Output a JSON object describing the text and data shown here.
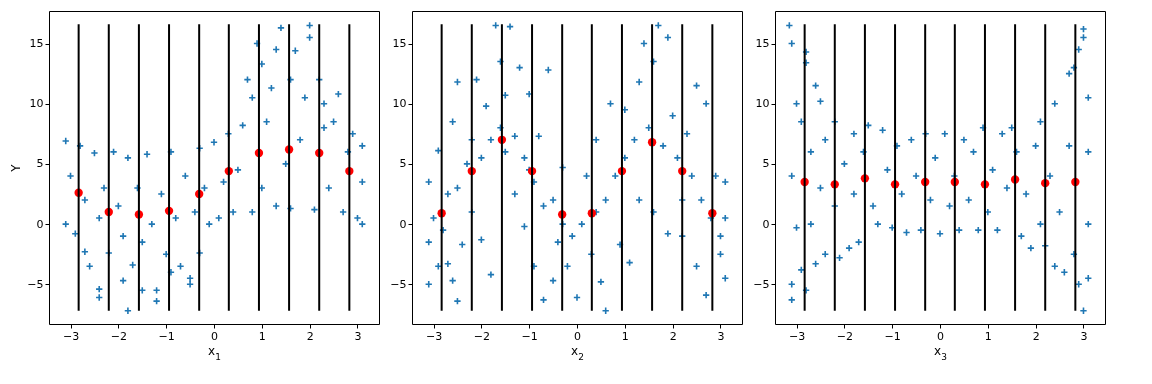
{
  "chart_data": [
    {
      "type": "scatter",
      "xlabel": "x$_{1}$",
      "ylabel": "Y",
      "xlim": [
        -3.45,
        3.45
      ],
      "ylim": [
        -8.3,
        17.7
      ],
      "xticks": [
        -3,
        -2,
        -1,
        0,
        1,
        2,
        3
      ],
      "yticks": [
        -5,
        0,
        5,
        10,
        15
      ],
      "grid": false,
      "series": [
        {
          "type": "scatter",
          "color": "#1f77b4",
          "marker": "cross",
          "x": [
            -3.1,
            -3.1,
            -3.0,
            -2.9,
            -2.8,
            -2.7,
            -2.7,
            -2.6,
            -2.5,
            -2.4,
            -2.4,
            -2.4,
            -2.3,
            -2.2,
            -2.1,
            -2.0,
            -1.9,
            -1.9,
            -1.8,
            -1.8,
            -1.7,
            -1.6,
            -1.5,
            -1.5,
            -1.4,
            -1.3,
            -1.2,
            -1.2,
            -1.1,
            -1.0,
            -0.9,
            -0.9,
            -0.8,
            -0.7,
            -0.6,
            -0.5,
            -0.5,
            -0.4,
            -0.3,
            -0.3,
            -0.2,
            -0.1,
            0,
            0.1,
            0.2,
            0.3,
            0.4,
            0.5,
            0.6,
            0.7,
            0.8,
            0.8,
            0.9,
            1.0,
            1.0,
            1.1,
            1.2,
            1.3,
            1.3,
            1.4,
            1.5,
            1.6,
            1.6,
            1.7,
            1.8,
            1.9,
            2.0,
            2.0,
            2.1,
            2.2,
            2.3,
            2.3,
            2.4,
            2.5,
            2.6,
            2.7,
            2.8,
            2.9,
            3.0,
            3.1,
            3.1,
            3.1
          ],
          "values": [
            6.9,
            0,
            4,
            -0.8,
            6.5,
            2,
            -2.3,
            -3.5,
            5.9,
            0.5,
            -5.4,
            -6.1,
            3,
            -2.4,
            6,
            1.5,
            -4.7,
            -1,
            5.5,
            -7.2,
            -3.4,
            3,
            -1.5,
            -5.5,
            5.8,
            0,
            -6.4,
            -5.5,
            2.5,
            -2.5,
            6,
            -4,
            0.5,
            -3.5,
            4,
            -4.5,
            -5,
            1,
            6.3,
            -2.4,
            3,
            0,
            6.8,
            0.5,
            3.5,
            7.5,
            1,
            4.5,
            8.2,
            12,
            1,
            10.5,
            15,
            3,
            13.3,
            8.5,
            11.3,
            1.5,
            14.5,
            16.3,
            5,
            12,
            1.3,
            14.4,
            7,
            10.5,
            16.5,
            15.5,
            1.2,
            12,
            8,
            10,
            3,
            8.5,
            10.8,
            1,
            6,
            7.5,
            0.5,
            0,
            6.5,
            3.5
          ]
        },
        {
          "type": "scatter",
          "color": "#ff0000",
          "marker": "circle",
          "x": [
            -2.83,
            -2.2,
            -1.57,
            -0.94,
            -0.31,
            0.31,
            0.94,
            1.57,
            2.2,
            2.83
          ],
          "values": [
            2.6,
            1.0,
            0.8,
            1.1,
            2.5,
            4.4,
            5.9,
            6.2,
            5.9,
            4.4
          ]
        },
        {
          "type": "line",
          "color": "#000000",
          "x": [
            -2.83,
            -2.83
          ],
          "values": [
            -7.2,
            16.6
          ]
        },
        {
          "type": "line",
          "color": "#000000",
          "x": [
            -2.2,
            -2.2
          ],
          "values": [
            -7.2,
            16.6
          ]
        },
        {
          "type": "line",
          "color": "#000000",
          "x": [
            -1.57,
            -1.57
          ],
          "values": [
            -7.2,
            16.6
          ]
        },
        {
          "type": "line",
          "color": "#000000",
          "x": [
            -0.94,
            -0.94
          ],
          "values": [
            -7.2,
            16.6
          ]
        },
        {
          "type": "line",
          "color": "#000000",
          "x": [
            -0.31,
            -0.31
          ],
          "values": [
            -7.2,
            16.6
          ]
        },
        {
          "type": "line",
          "color": "#000000",
          "x": [
            0.31,
            0.31
          ],
          "values": [
            -7.2,
            16.6
          ]
        },
        {
          "type": "line",
          "color": "#000000",
          "x": [
            0.94,
            0.94
          ],
          "values": [
            -7.2,
            16.6
          ]
        },
        {
          "type": "line",
          "color": "#000000",
          "x": [
            1.57,
            1.57
          ],
          "values": [
            -7.2,
            16.6
          ]
        },
        {
          "type": "line",
          "color": "#000000",
          "x": [
            2.2,
            2.2
          ],
          "values": [
            -7.2,
            16.6
          ]
        },
        {
          "type": "line",
          "color": "#000000",
          "x": [
            2.83,
            2.83
          ],
          "values": [
            -7.2,
            16.6
          ]
        }
      ]
    },
    {
      "type": "scatter",
      "xlabel": "x$_{2}$",
      "xlim": [
        -3.45,
        3.45
      ],
      "ylim": [
        -8.3,
        17.7
      ],
      "xticks": [
        -3,
        -2,
        -1,
        0,
        1,
        2,
        3
      ],
      "yticks": [
        -5,
        0,
        5,
        10,
        15
      ],
      "grid": false,
      "series": [
        {
          "type": "scatter",
          "color": "#1f77b4",
          "marker": "cross",
          "x": [
            -3.1,
            -3.1,
            -3.1,
            -3.0,
            -2.9,
            -2.9,
            -2.8,
            -2.7,
            -2.7,
            -2.6,
            -2.6,
            -2.5,
            -2.5,
            -2.5,
            -2.4,
            -2.3,
            -2.2,
            -2.2,
            -2.1,
            -2.0,
            -2.0,
            -1.9,
            -1.8,
            -1.8,
            -1.7,
            -1.6,
            -1.6,
            -1.5,
            -1.5,
            -1.4,
            -1.3,
            -1.3,
            -1.2,
            -1.1,
            -1.1,
            -1.0,
            -1.0,
            -0.9,
            -0.9,
            -0.8,
            -0.7,
            -0.7,
            -0.6,
            -0.5,
            -0.5,
            -0.4,
            -0.3,
            -0.3,
            -0.2,
            -0.1,
            0,
            0.1,
            0.2,
            0.3,
            0.4,
            0.4,
            0.5,
            0.6,
            0.6,
            0.7,
            0.8,
            0.9,
            1.0,
            1.0,
            1.1,
            1.2,
            1.3,
            1.3,
            1.4,
            1.5,
            1.6,
            1.6,
            1.7,
            1.8,
            1.9,
            1.9,
            2.0,
            2.1,
            2.2,
            2.2,
            2.3,
            2.4,
            2.5,
            2.5,
            2.6,
            2.7,
            2.7,
            2.8,
            2.9,
            3.0,
            3.0,
            3.1,
            3.1,
            3.1
          ],
          "values": [
            3.5,
            -1.5,
            -5,
            0.5,
            -3.5,
            6.1,
            -0.5,
            2.5,
            -3.3,
            8.5,
            -4.7,
            11.8,
            3,
            -6.4,
            -1.7,
            5,
            7,
            1,
            12,
            5.5,
            -1.3,
            9.8,
            7,
            -4.2,
            16.5,
            8,
            13.5,
            6,
            10.7,
            16.4,
            7.3,
            2.5,
            13,
            5.5,
            -0.2,
            4.5,
            10.8,
            3.5,
            -3.5,
            7.3,
            1.5,
            -6.3,
            12.8,
            2,
            -4.7,
            -1.5,
            4.7,
            0,
            -3.5,
            -1,
            -6.1,
            0,
            4,
            -2.5,
            1,
            7,
            -4.8,
            -7.2,
            2,
            10,
            4,
            -1.7,
            9.5,
            5.5,
            -3.2,
            7,
            11.8,
            2,
            15,
            8,
            13.5,
            1,
            16.5,
            6.5,
            15.5,
            -0.8,
            9,
            5.5,
            2,
            -1,
            7.5,
            4,
            11.5,
            -3.5,
            2,
            -5.9,
            10,
            0.5,
            4,
            -1,
            -2.5,
            3.5,
            -4.5,
            0.5
          ]
        },
        {
          "type": "scatter",
          "color": "#ff0000",
          "marker": "circle",
          "x": [
            -2.83,
            -2.2,
            -1.57,
            -0.94,
            -0.31,
            0.31,
            0.94,
            1.57,
            2.2,
            2.83
          ],
          "values": [
            0.9,
            4.4,
            7.0,
            4.4,
            0.8,
            0.9,
            4.4,
            6.8,
            4.4,
            0.9
          ]
        },
        {
          "type": "line",
          "color": "#000000",
          "x": [
            -2.83,
            -2.83
          ],
          "values": [
            -7.2,
            16.6
          ]
        },
        {
          "type": "line",
          "color": "#000000",
          "x": [
            -2.2,
            -2.2
          ],
          "values": [
            -7.2,
            16.6
          ]
        },
        {
          "type": "line",
          "color": "#000000",
          "x": [
            -1.57,
            -1.57
          ],
          "values": [
            -7.2,
            16.6
          ]
        },
        {
          "type": "line",
          "color": "#000000",
          "x": [
            -0.94,
            -0.94
          ],
          "values": [
            -7.2,
            16.6
          ]
        },
        {
          "type": "line",
          "color": "#000000",
          "x": [
            -0.31,
            -0.31
          ],
          "values": [
            -7.2,
            16.6
          ]
        },
        {
          "type": "line",
          "color": "#000000",
          "x": [
            0.31,
            0.31
          ],
          "values": [
            -7.2,
            16.6
          ]
        },
        {
          "type": "line",
          "color": "#000000",
          "x": [
            0.94,
            0.94
          ],
          "values": [
            -7.2,
            16.6
          ]
        },
        {
          "type": "line",
          "color": "#000000",
          "x": [
            1.57,
            1.57
          ],
          "values": [
            -7.2,
            16.6
          ]
        },
        {
          "type": "line",
          "color": "#000000",
          "x": [
            2.2,
            2.2
          ],
          "values": [
            -7.2,
            16.6
          ]
        },
        {
          "type": "line",
          "color": "#000000",
          "x": [
            2.83,
            2.83
          ],
          "values": [
            -7.2,
            16.6
          ]
        }
      ]
    },
    {
      "type": "scatter",
      "xlabel": "x$_{3}$",
      "xlim": [
        -3.45,
        3.45
      ],
      "ylim": [
        -8.3,
        17.7
      ],
      "xticks": [
        -3,
        -2,
        -1,
        0,
        1,
        2,
        3
      ],
      "yticks": [
        -5,
        0,
        5,
        10,
        15
      ],
      "grid": false,
      "series": [
        {
          "type": "scatter",
          "color": "#1f77b4",
          "marker": "cross",
          "x": [
            -3.15,
            -3.1,
            -3.1,
            -3.1,
            -3.1,
            -3.0,
            -3.0,
            -2.9,
            -2.9,
            -2.8,
            -2.8,
            -2.8,
            -2.7,
            -2.7,
            -2.6,
            -2.6,
            -2.5,
            -2.5,
            -2.4,
            -2.4,
            -2.2,
            -2.2,
            -2.1,
            -2.0,
            -1.9,
            -1.8,
            -1.8,
            -1.7,
            -1.6,
            -1.5,
            -1.4,
            -1.3,
            -1.2,
            -1.1,
            -1.0,
            -0.9,
            -0.8,
            -0.7,
            -0.6,
            -0.5,
            -0.4,
            -0.3,
            -0.2,
            -0.1,
            0,
            0.1,
            0.2,
            0.3,
            0.4,
            0.5,
            0.6,
            0.7,
            0.8,
            0.9,
            1.0,
            1.1,
            1.2,
            1.3,
            1.4,
            1.5,
            1.6,
            1.7,
            1.8,
            1.9,
            2.0,
            2.1,
            2.1,
            2.2,
            2.3,
            2.4,
            2.4,
            2.5,
            2.6,
            2.7,
            2.7,
            2.8,
            2.8,
            2.9,
            2.9,
            3.0,
            3.0,
            3.0,
            3.1,
            3.1,
            3.1,
            3.1
          ],
          "values": [
            16.5,
            15,
            4,
            -5,
            -6.3,
            10,
            -0.3,
            8.5,
            -3.8,
            14.3,
            13.4,
            -5.5,
            6,
            0,
            11.5,
            -3.3,
            10.2,
            3,
            7,
            -2.5,
            8.5,
            1.5,
            -2.8,
            5,
            -2,
            7.5,
            2.5,
            -1.5,
            6,
            8.2,
            1.5,
            0,
            7.8,
            4.5,
            -0.3,
            6.5,
            2.5,
            -0.7,
            7,
            4,
            -0.5,
            7.5,
            2,
            5.5,
            -0.8,
            7.5,
            1.5,
            4,
            -0.5,
            7,
            2,
            6,
            -0.5,
            8,
            1,
            4.5,
            -0.5,
            7.5,
            3,
            8,
            6,
            -1,
            2.5,
            -2,
            6.5,
            8.5,
            0,
            -1.8,
            4,
            -3.5,
            10,
            1,
            -4,
            12.5,
            6.5,
            13,
            -2.5,
            14.5,
            -5,
            16.2,
            -7.2,
            15.5,
            10.5,
            -4.5,
            6,
            0
          ]
        },
        {
          "type": "scatter",
          "color": "#ff0000",
          "marker": "circle",
          "x": [
            -2.83,
            -2.2,
            -1.57,
            -0.94,
            -0.31,
            0.31,
            0.94,
            1.57,
            2.2,
            2.83
          ],
          "values": [
            3.5,
            3.3,
            3.8,
            3.3,
            3.5,
            3.5,
            3.3,
            3.7,
            3.4,
            3.5
          ]
        },
        {
          "type": "line",
          "color": "#000000",
          "x": [
            -2.83,
            -2.83
          ],
          "values": [
            -7.2,
            16.6
          ]
        },
        {
          "type": "line",
          "color": "#000000",
          "x": [
            -2.2,
            -2.2
          ],
          "values": [
            -7.2,
            16.6
          ]
        },
        {
          "type": "line",
          "color": "#000000",
          "x": [
            -1.57,
            -1.57
          ],
          "values": [
            -7.2,
            16.6
          ]
        },
        {
          "type": "line",
          "color": "#000000",
          "x": [
            -0.94,
            -0.94
          ],
          "values": [
            -7.2,
            16.6
          ]
        },
        {
          "type": "line",
          "color": "#000000",
          "x": [
            -0.31,
            -0.31
          ],
          "values": [
            -7.2,
            16.6
          ]
        },
        {
          "type": "line",
          "color": "#000000",
          "x": [
            0.31,
            0.31
          ],
          "values": [
            -7.2,
            16.6
          ]
        },
        {
          "type": "line",
          "color": "#000000",
          "x": [
            0.94,
            0.94
          ],
          "values": [
            -7.2,
            16.6
          ]
        },
        {
          "type": "line",
          "color": "#000000",
          "x": [
            1.57,
            1.57
          ],
          "values": [
            -7.2,
            16.6
          ]
        },
        {
          "type": "line",
          "color": "#000000",
          "x": [
            2.2,
            2.2
          ],
          "values": [
            -7.2,
            16.6
          ]
        },
        {
          "type": "line",
          "color": "#000000",
          "x": [
            2.83,
            2.83
          ],
          "values": [
            -7.2,
            16.6
          ]
        }
      ]
    }
  ]
}
